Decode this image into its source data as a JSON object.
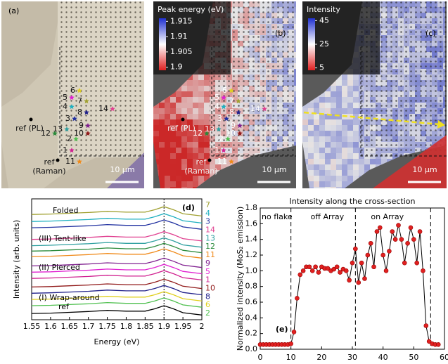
{
  "panels": [
    {
      "label": "(a)",
      "scalebar": "10 μm",
      "ref_pl": "ref (PL)",
      "ref_raman": [
        "ref",
        "(Raman)"
      ]
    },
    {
      "label": "(b)",
      "scalebar": "10 μm",
      "ref_pl": "ref (PL)",
      "ref_raman": [
        "ref",
        "(Raman)"
      ],
      "colorbar": {
        "title": "Peak energy (eV)",
        "lim": [
          1.899,
          1.916
        ],
        "ticks": [
          1.915,
          1.91,
          1.905,
          1.9
        ],
        "colors": [
          "#e02020",
          "#ffffff",
          "#2030d0"
        ]
      }
    },
    {
      "label": "(c)",
      "scalebar": "10 μm",
      "colorbar": {
        "title": "Intensity",
        "lim": [
          3,
          47
        ],
        "ticks": [
          45,
          25,
          5
        ],
        "colors": [
          "#e02020",
          "#ffffff",
          "#2030d0"
        ]
      }
    }
  ],
  "points": [
    {
      "label": "1",
      "color": "#d02090"
    },
    {
      "label": "2",
      "color": "#50c050"
    },
    {
      "label": "3",
      "color": "#2030a0"
    },
    {
      "label": "4",
      "color": "#20b0c0"
    },
    {
      "label": "5",
      "color": "#e020d0"
    },
    {
      "label": "6",
      "color": "#e0d020"
    },
    {
      "label": "7",
      "color": "#a0a030"
    },
    {
      "label": "8",
      "color": "#20208a"
    },
    {
      "label": "9",
      "color": "#802090"
    },
    {
      "label": "10",
      "color": "#901818"
    },
    {
      "label": "11",
      "color": "#f08a1a"
    },
    {
      "label": "12",
      "color": "#2a8a3a"
    },
    {
      "label": "13",
      "color": "#30a0a0"
    },
    {
      "label": "14",
      "color": "#e04090"
    }
  ],
  "chart_data": [
    {
      "type": "line",
      "panel_label": "(d)",
      "xlabel": "Energy (eV)",
      "ylabel": "Intensity (arb. units)",
      "xlim": [
        1.55,
        2.0
      ],
      "xticks": [
        1.55,
        1.6,
        1.65,
        1.7,
        1.75,
        1.8,
        1.85,
        1.9,
        1.95,
        2
      ],
      "ylim": [
        0,
        15.5
      ],
      "vline": 1.9,
      "annotations": [
        "Folded",
        "(III) Tent-like",
        "(II) Pierced",
        "(I) Wrap-around"
      ],
      "x": [
        1.55,
        1.6,
        1.65,
        1.7,
        1.75,
        1.8,
        1.85,
        1.875,
        1.9,
        1.925,
        1.95,
        2.0
      ],
      "series": [
        {
          "name": "7",
          "color": "#a0a030",
          "values": [
            13.5,
            13.55,
            13.65,
            13.75,
            13.9,
            13.8,
            13.8,
            14.1,
            14.5,
            14.1,
            13.6,
            13.3
          ]
        },
        {
          "name": "4",
          "color": "#20b0c0",
          "values": [
            12.6,
            12.65,
            12.75,
            12.85,
            13.0,
            12.9,
            12.9,
            13.2,
            13.6,
            13.2,
            12.7,
            12.4
          ]
        },
        {
          "name": "3",
          "color": "#2030a0",
          "values": [
            11.8,
            11.85,
            11.95,
            12.05,
            12.2,
            12.1,
            12.1,
            12.4,
            12.8,
            12.4,
            11.9,
            11.6
          ]
        },
        {
          "name": "14",
          "color": "#e04090",
          "values": [
            10.3,
            10.35,
            10.45,
            10.55,
            10.7,
            10.6,
            10.6,
            10.9,
            11.3,
            10.9,
            10.4,
            10.1
          ]
        },
        {
          "name": "13",
          "color": "#30a0a0",
          "values": [
            9.5,
            9.55,
            9.65,
            9.75,
            9.9,
            9.8,
            9.8,
            10.1,
            10.5,
            10.1,
            9.6,
            9.3
          ]
        },
        {
          "name": "12",
          "color": "#2a8a3a",
          "values": [
            8.8,
            8.85,
            8.95,
            9.05,
            9.2,
            9.1,
            9.1,
            9.4,
            9.8,
            9.4,
            8.9,
            8.6
          ]
        },
        {
          "name": "11",
          "color": "#f08a1a",
          "values": [
            8.1,
            8.15,
            8.25,
            8.35,
            8.5,
            8.4,
            8.4,
            8.7,
            9.1,
            8.7,
            8.2,
            7.9
          ]
        },
        {
          "name": "9",
          "color": "#802090",
          "values": [
            6.9,
            6.95,
            7.05,
            7.15,
            7.3,
            7.2,
            7.2,
            7.5,
            7.9,
            7.5,
            7.0,
            6.7
          ]
        },
        {
          "name": "5",
          "color": "#e020d0",
          "values": [
            6.1,
            6.15,
            6.25,
            6.35,
            6.5,
            6.4,
            6.4,
            6.7,
            7.1,
            6.7,
            6.2,
            5.9
          ]
        },
        {
          "name": "1",
          "color": "#d02090",
          "values": [
            5.3,
            5.35,
            5.45,
            5.55,
            5.7,
            5.6,
            5.6,
            5.9,
            6.3,
            5.9,
            5.4,
            5.1
          ]
        },
        {
          "name": "10",
          "color": "#901818",
          "values": [
            4.2,
            4.25,
            4.35,
            4.45,
            4.6,
            4.5,
            4.5,
            4.8,
            5.2,
            4.8,
            4.3,
            4.0
          ]
        },
        {
          "name": "8",
          "color": "#20208a",
          "values": [
            3.4,
            3.45,
            3.55,
            3.65,
            3.8,
            3.7,
            3.7,
            4.0,
            4.4,
            4.0,
            3.5,
            3.2
          ]
        },
        {
          "name": "6",
          "color": "#e0d020",
          "values": [
            2.6,
            2.65,
            2.75,
            2.85,
            3.0,
            2.9,
            2.9,
            3.2,
            3.6,
            3.2,
            2.7,
            2.4
          ]
        },
        {
          "name": "2",
          "color": "#50c050",
          "values": [
            1.8,
            1.85,
            1.95,
            2.05,
            2.2,
            2.1,
            2.1,
            2.4,
            2.8,
            2.4,
            1.9,
            1.6
          ]
        },
        {
          "name": "ref",
          "color": "#000000",
          "values": [
            0.8,
            0.85,
            0.95,
            1.05,
            1.2,
            1.1,
            1.1,
            1.4,
            1.8,
            1.4,
            0.9,
            0.6
          ]
        }
      ]
    },
    {
      "type": "scatter",
      "connect": true,
      "panel_label": "(e)",
      "title": "Intensity along the cross-section",
      "ylabel": "Normalized intensity (MoS₂ emission)",
      "color": "#e02020",
      "xlim": [
        0,
        60
      ],
      "xticks": [
        0,
        10,
        20,
        30,
        40,
        50,
        60
      ],
      "ylim": [
        0,
        1.8
      ],
      "yticks": [
        {
          "value": 0,
          "label": "0.0"
        },
        {
          "value": 0.2,
          "label": "0.2"
        },
        {
          "value": 0.4,
          "label": "0.4"
        },
        {
          "value": 0.6,
          "label": "0.6"
        },
        {
          "value": 0.8,
          "label": "0.8"
        },
        {
          "value": 1,
          "label": "1.0"
        },
        {
          "value": 1.2,
          "label": "1.2"
        },
        {
          "value": 1.4,
          "label": "1.4"
        },
        {
          "value": 1.6,
          "label": "1.6"
        },
        {
          "value": 1.8,
          "label": "1.8"
        }
      ],
      "vlines": [
        10,
        31,
        55.5
      ],
      "regions": [
        "no flake",
        "off Array",
        "on Array"
      ],
      "x": [
        0,
        1,
        2,
        3,
        4,
        5,
        6,
        7,
        8,
        9,
        10,
        11,
        12,
        13,
        14,
        15,
        16,
        17,
        18,
        19,
        20,
        21,
        22,
        23,
        24,
        25,
        26,
        27,
        28,
        29,
        30,
        31,
        32,
        33,
        34,
        35,
        36,
        37,
        38,
        39,
        40,
        41,
        42,
        43,
        44,
        45,
        46,
        47,
        48,
        49,
        50,
        51,
        52,
        53,
        54,
        55,
        56,
        57,
        58
      ],
      "values": [
        0.06,
        0.06,
        0.06,
        0.06,
        0.06,
        0.06,
        0.06,
        0.06,
        0.06,
        0.06,
        0.07,
        0.22,
        0.65,
        0.95,
        1.0,
        1.05,
        1.05,
        1.0,
        1.05,
        0.98,
        1.05,
        1.03,
        1.03,
        1.0,
        1.02,
        1.05,
        0.98,
        1.02,
        1.0,
        0.88,
        1.1,
        1.28,
        0.85,
        1.1,
        0.9,
        1.2,
        1.35,
        1.05,
        1.5,
        1.55,
        1.2,
        1.0,
        1.25,
        1.5,
        1.4,
        1.58,
        1.4,
        1.1,
        1.35,
        1.55,
        1.4,
        1.1,
        1.5,
        1.0,
        0.3,
        0.1,
        0.07,
        0.06,
        0.06
      ]
    }
  ]
}
